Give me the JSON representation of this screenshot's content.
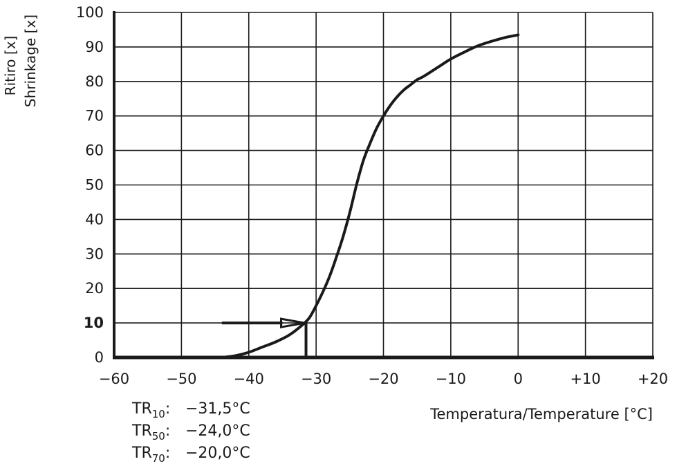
{
  "chart_data": {
    "type": "line",
    "ylabel_lines": [
      "Ritiro [x]",
      "Shrinkage [x]"
    ],
    "xlabel": "Temperatura/Temperature [°C]",
    "xlim": [
      -60,
      20
    ],
    "ylim": [
      0,
      100
    ],
    "grid": true,
    "x_ticks": [
      -60,
      -50,
      -40,
      -30,
      -20,
      -10,
      0,
      10,
      20
    ],
    "x_tick_labels": [
      "−60",
      "−50",
      "−40",
      "−30",
      "−20",
      "−10",
      "0",
      "+10",
      "+20"
    ],
    "y_ticks": [
      0,
      10,
      20,
      30,
      40,
      50,
      60,
      70,
      80,
      90,
      100
    ],
    "y_tick_labels": [
      "0",
      "10",
      "20",
      "30",
      "40",
      "50",
      "60",
      "70",
      "80",
      "90",
      "100"
    ],
    "y_bold_tick": 10,
    "series": [
      {
        "x": [
          -44,
          -42,
          -40,
          -38,
          -36,
          -34,
          -32,
          -31,
          -30,
          -29,
          -28,
          -27,
          -26,
          -25,
          -24,
          -23,
          -22,
          -21,
          -20,
          -19,
          -18,
          -17,
          -16,
          -15,
          -14,
          -12,
          -10,
          -8,
          -6,
          -4,
          -2,
          0
        ],
        "y": [
          0,
          0.5,
          1.5,
          3,
          4.5,
          6.5,
          9.5,
          11.5,
          15,
          19,
          23.5,
          29,
          35,
          42,
          50,
          57,
          62,
          66.5,
          70,
          73,
          75.5,
          77.5,
          79,
          80.5,
          81.5,
          84,
          86.5,
          88.5,
          90.3,
          91.6,
          92.7,
          93.5
        ]
      }
    ],
    "annotation": {
      "arrow_from": [
        -44,
        10
      ],
      "arrow_to": [
        -31.5,
        10
      ],
      "drop_x": -31.5,
      "drop_from_y": 10,
      "drop_to_y": 0
    },
    "tr_values": [
      {
        "prefix": "TR",
        "sub": "10",
        "sep": ":",
        "value": "−31,5°C"
      },
      {
        "prefix": "TR",
        "sub": "50",
        "sep": ":",
        "value": "−24,0°C"
      },
      {
        "prefix": "TR",
        "sub": "70",
        "sep": ":",
        "value": "−20,0°C"
      }
    ]
  }
}
